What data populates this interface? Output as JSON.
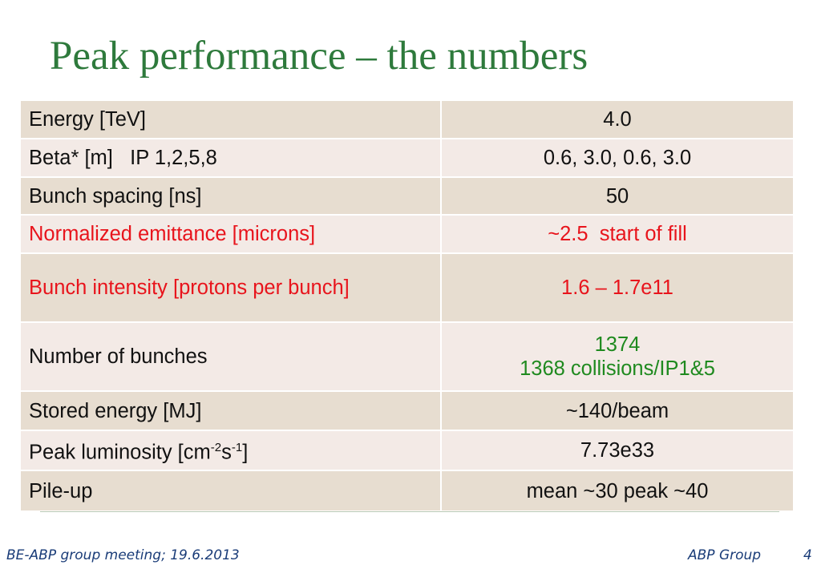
{
  "title": "Peak performance – the numbers",
  "table": {
    "rows": [
      {
        "label": "Energy [TeV]",
        "value": "4.0"
      },
      {
        "label": "Beta* [m]   IP 1,2,5,8",
        "value": "0.6, 3.0, 0.6, 3.0"
      },
      {
        "label": "Bunch spacing [ns]",
        "value": "50"
      },
      {
        "label": "Normalized emittance [microns]",
        "value": "~2.5  start of fill"
      },
      {
        "label": "Bunch intensity [protons per bunch]",
        "value": "1.6 – 1.7e11"
      },
      {
        "label": "Number of bunches",
        "value_line1": "1374",
        "value_line2": "1368 collisions/IP1&5"
      },
      {
        "label": "Stored energy [MJ]",
        "value": "~140/beam"
      },
      {
        "label_prefix": "Peak luminosity [cm",
        "label_sup1": "-2",
        "label_mid": "s",
        "label_sup2": "-1",
        "label_suffix": "]",
        "value": "7.73e33"
      },
      {
        "label": "Pile-up",
        "value": "mean ~30 peak ~40"
      }
    ]
  },
  "footer": {
    "left": "BE-ABP group meeting; 19.6.2013",
    "right": "ABP Group",
    "page": "4"
  },
  "colors": {
    "title": "#2e7a3c",
    "red_text": "#e8141c",
    "green_text": "#1f8a1f",
    "row_dark": "#e7ddd0",
    "row_light": "#f3eae6",
    "footer": "#1a3c78"
  }
}
